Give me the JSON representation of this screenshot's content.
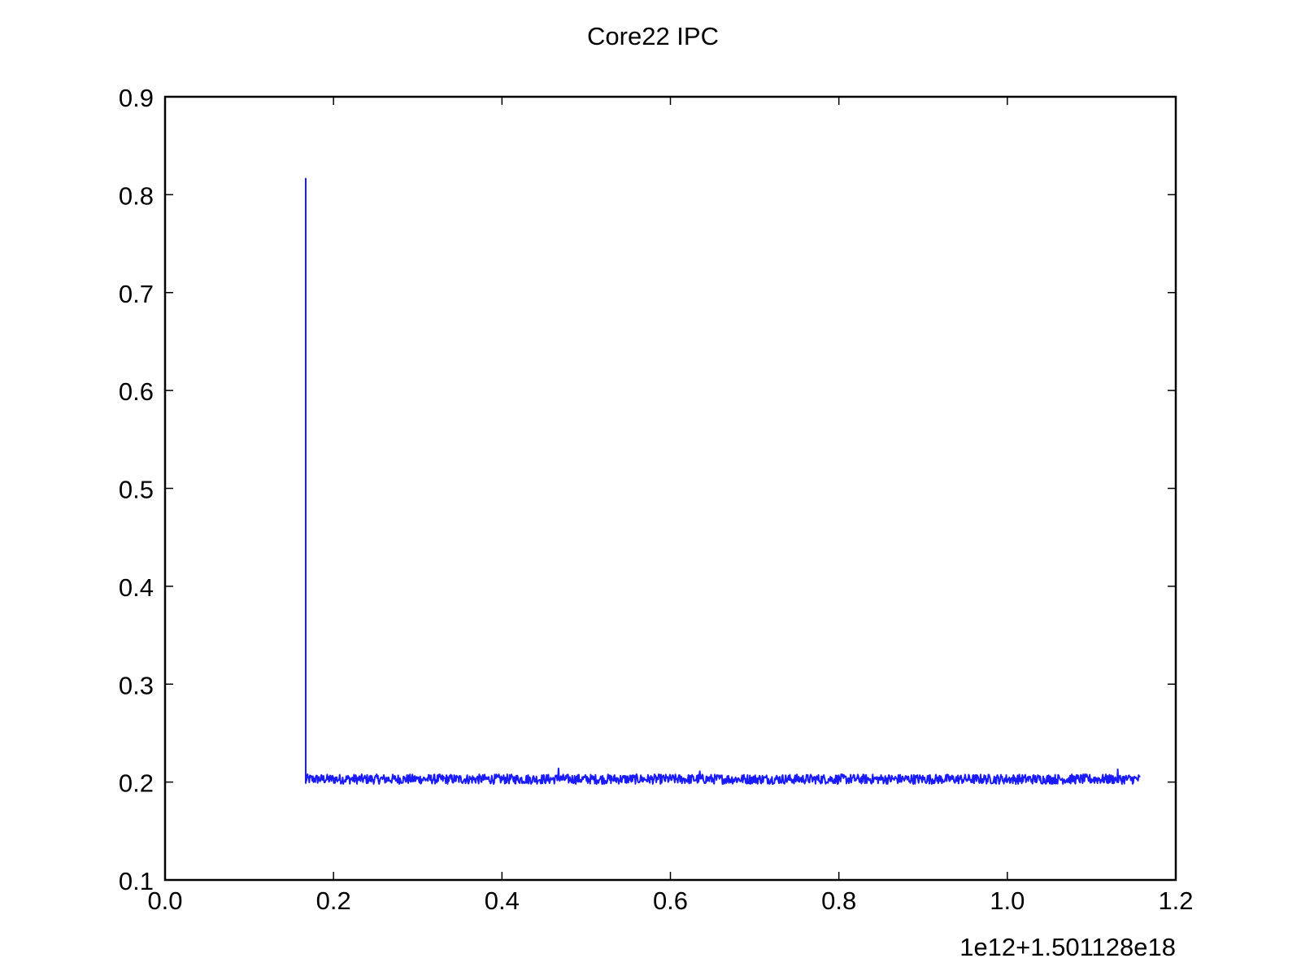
{
  "chart_data": {
    "type": "line",
    "title": "Core22 IPC",
    "xlabel": "",
    "ylabel": "",
    "x_offset_label": "1e12+1.501128e18",
    "xlim": [
      0.0,
      1.2
    ],
    "ylim": [
      0.1,
      0.9
    ],
    "x_ticks": [
      "0.0",
      "0.2",
      "0.4",
      "0.6",
      "0.8",
      "1.0",
      "1.2"
    ],
    "y_ticks": [
      "0.1",
      "0.2",
      "0.3",
      "0.4",
      "0.5",
      "0.6",
      "0.7",
      "0.8",
      "0.9"
    ],
    "grid": false,
    "legend": "none",
    "series": [
      {
        "color": "#1a1aff",
        "start": [
          0.167,
          0.817
        ],
        "x_range": [
          0.167,
          1.158
        ],
        "baseline": 0.203,
        "noise_amplitude": 0.005,
        "notable_points": [
          [
            0.467,
            0.214
          ],
          [
            0.635,
            0.211
          ],
          [
            1.131,
            0.213
          ]
        ]
      }
    ]
  }
}
